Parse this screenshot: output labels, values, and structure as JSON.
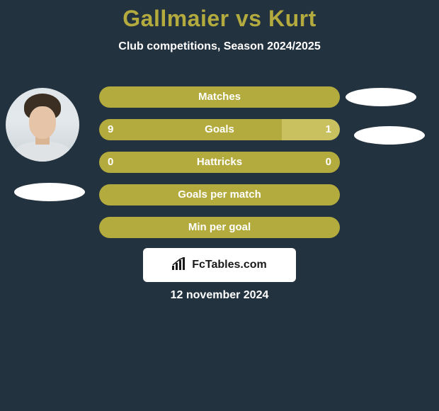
{
  "title": {
    "text": "Gallmaier vs Kurt",
    "fontsize": 32,
    "color": "#b4ab3f"
  },
  "subtitle": {
    "text": "Club competitions, Season 2024/2025",
    "fontsize": 16,
    "color": "#ffffff"
  },
  "bars": {
    "olive": "#b4ab3f",
    "olive_light": "#c9c060",
    "text_color": "#ffffff",
    "fontsize": 15,
    "rows": [
      {
        "label": "Matches",
        "left": "",
        "right": "",
        "left_pct": 100,
        "right_pct": 0,
        "left_color": "#b4ab3f",
        "right_color": "#b4ab3f"
      },
      {
        "label": "Goals",
        "left": "9",
        "right": "1",
        "left_pct": 76,
        "right_pct": 24,
        "left_color": "#b4ab3f",
        "right_color": "#c9c060"
      },
      {
        "label": "Hattricks",
        "left": "0",
        "right": "0",
        "left_pct": 100,
        "right_pct": 0,
        "left_color": "#b4ab3f",
        "right_color": "#b4ab3f"
      },
      {
        "label": "Goals per match",
        "left": "",
        "right": "",
        "left_pct": 100,
        "right_pct": 0,
        "left_color": "#b4ab3f",
        "right_color": "#b4ab3f"
      },
      {
        "label": "Min per goal",
        "left": "",
        "right": "",
        "left_pct": 100,
        "right_pct": 0,
        "left_color": "#b4ab3f",
        "right_color": "#b4ab3f"
      }
    ]
  },
  "brand": {
    "text": "FcTables.com",
    "box_bg": "#ffffff",
    "text_color": "#1a1a1a",
    "fontsize": 16,
    "icon_color": "#1a1a1a"
  },
  "date": {
    "text": "12 november 2024",
    "fontsize": 16,
    "color": "#ffffff"
  },
  "background_color": "#23323f",
  "ellipse_color": "#ffffff"
}
